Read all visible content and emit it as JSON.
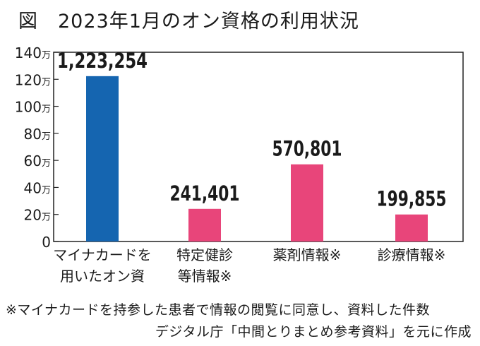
{
  "figure": {
    "title": "図　2023年1月のオン資格の利用状況",
    "note": "※マイナカードを持参した患者で情報の閲覧に同意し、資料した件数",
    "source": "デジタル庁「中間とりまとめ参考資料」を元に作成"
  },
  "chart_data": {
    "type": "bar",
    "title": "図　2023年1月のオン資格の利用状況",
    "categories": [
      [
        "マイナカードを",
        "用いたオン資"
      ],
      [
        "特定健診",
        "等情報※"
      ],
      [
        "薬剤情報※"
      ],
      [
        "診療情報※"
      ]
    ],
    "values": [
      1223254,
      241401,
      570801,
      199855
    ],
    "value_labels": [
      "1,223,254",
      "241,401",
      "570,801",
      "199,855"
    ],
    "colors": [
      "#1565b0",
      "#e8457a",
      "#e8457a",
      "#e8457a"
    ],
    "ylim": [
      0,
      1400000
    ],
    "yticks": [
      0,
      200000,
      400000,
      600000,
      800000,
      1000000,
      1200000,
      1400000
    ],
    "ytick_labels": [
      "0",
      "20万",
      "40万",
      "60万",
      "80万",
      "100万",
      "120万",
      "140万"
    ],
    "grid": false,
    "legend": "none"
  }
}
